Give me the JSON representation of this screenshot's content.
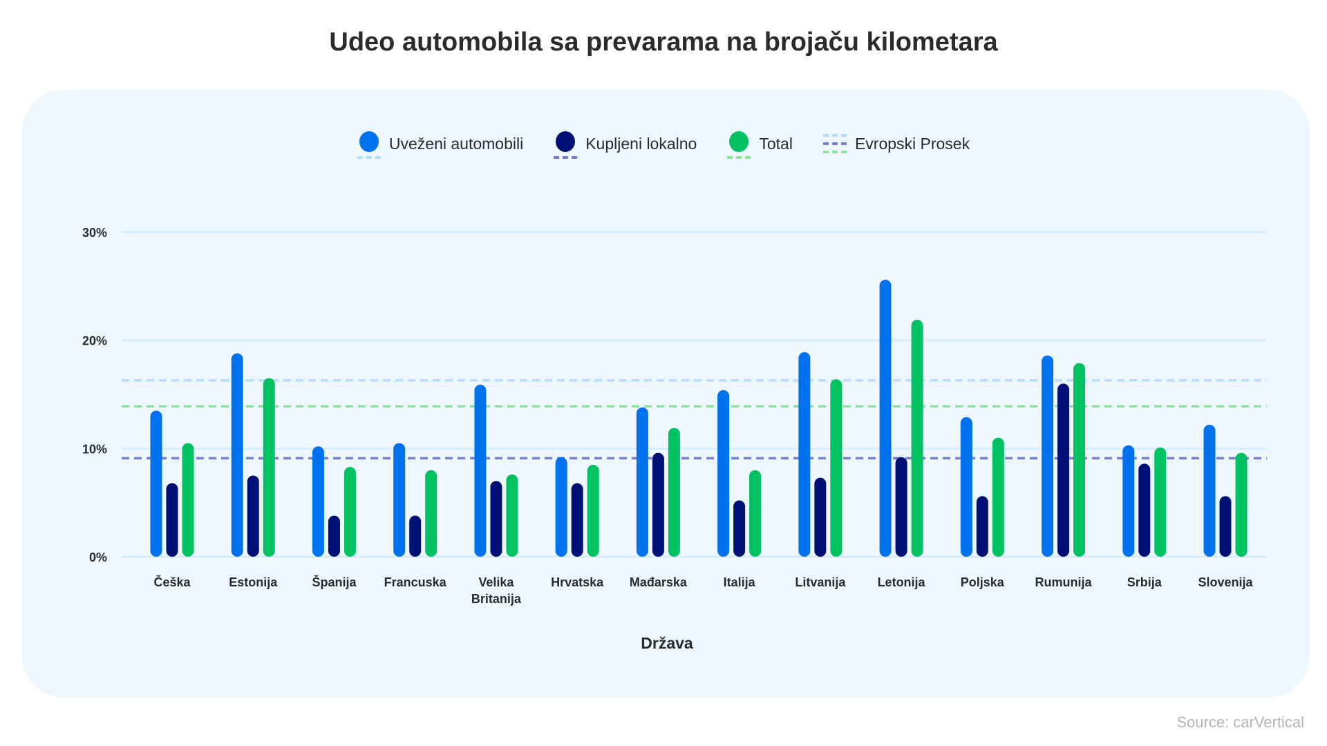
{
  "title": "Udeo automobila sa prevarama na brojaču kilometara",
  "source": "Source: carVertical",
  "colors": {
    "imported": "#0072ee",
    "local": "#001075",
    "total": "#00c260",
    "avg_imported": "#b3dcff",
    "avg_local": "#7782c4",
    "avg_total": "#8ee39a",
    "grid": "#d6ecfc",
    "panel": "#eef7fe"
  },
  "chart_data": {
    "type": "bar",
    "title": "Udeo automobila sa prevarama na brojaču kilometara",
    "xlabel": "Država",
    "ylabel": "",
    "ylim": [
      0,
      30
    ],
    "yticks": [
      0,
      10,
      20,
      30
    ],
    "ytick_labels": [
      "0%",
      "10%",
      "20%",
      "30%"
    ],
    "grid": true,
    "legend_placement": "top-center",
    "categories": [
      "Češka",
      "Estonija",
      "Španija",
      "Francuska",
      "Velika Britanija",
      "Hrvatska",
      "Mađarska",
      "Italija",
      "Litvanija",
      "Letonija",
      "Poljska",
      "Rumunija",
      "Srbija",
      "Slovenija"
    ],
    "series": [
      {
        "name": "Uveženi automobili",
        "color": "#0072ee",
        "values": [
          13.5,
          18.8,
          10.2,
          10.5,
          15.9,
          9.2,
          13.8,
          15.4,
          18.9,
          25.6,
          12.9,
          18.6,
          10.3,
          12.2
        ]
      },
      {
        "name": "Kupljeni lokalno",
        "color": "#001075",
        "values": [
          6.8,
          7.5,
          3.8,
          3.8,
          7.0,
          6.8,
          9.6,
          5.2,
          7.3,
          9.2,
          5.6,
          16.0,
          8.6,
          5.6
        ]
      },
      {
        "name": "Total",
        "color": "#00c260",
        "values": [
          10.5,
          16.5,
          8.3,
          8.0,
          7.6,
          8.5,
          11.9,
          8.0,
          16.4,
          21.9,
          11.0,
          17.9,
          10.1,
          9.6
        ]
      }
    ],
    "reference_lines": {
      "name": "Evropski Prosek",
      "lines": [
        {
          "series": "Uveženi automobili",
          "value": 16.3,
          "color": "#b3dcff"
        },
        {
          "series": "Total",
          "value": 13.9,
          "color": "#8ee39a"
        },
        {
          "series": "Kupljeni lokalno",
          "value": 9.1,
          "color": "#7782c4"
        }
      ]
    }
  }
}
